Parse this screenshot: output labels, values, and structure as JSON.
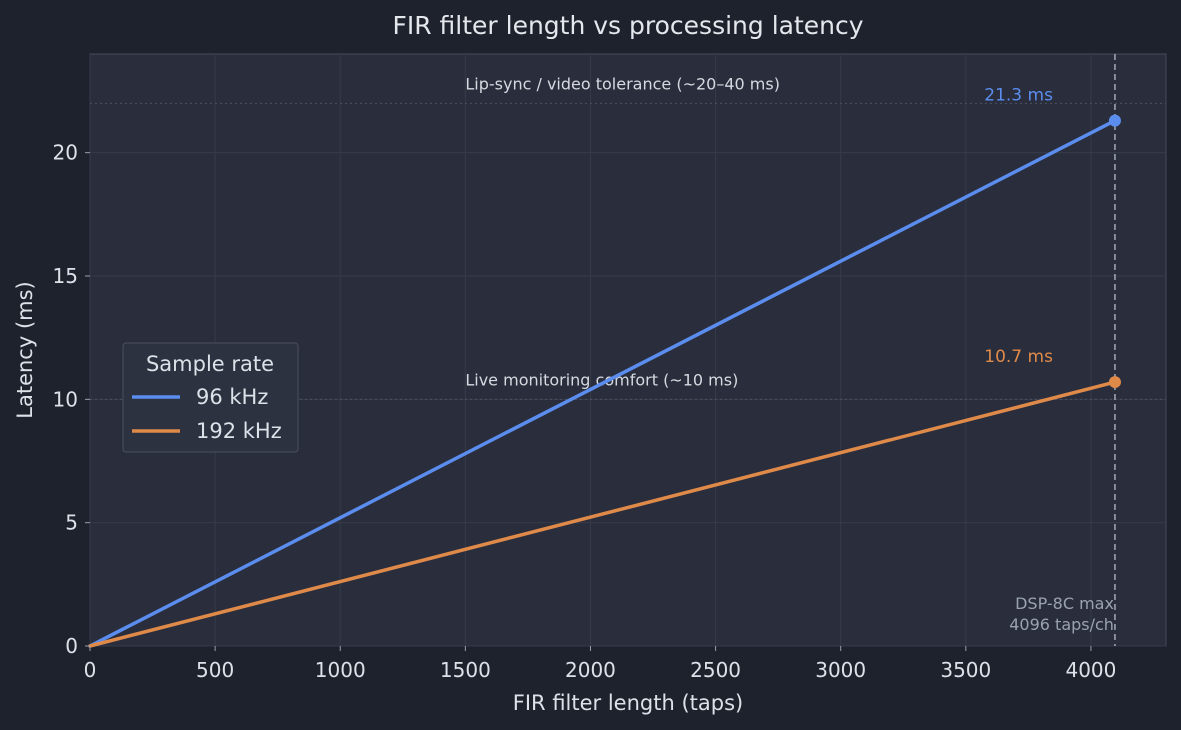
{
  "chart_data": {
    "type": "line",
    "title": "FIR filter length vs processing latency",
    "xlabel": "FIR filter length (taps)",
    "ylabel": "Latency (ms)",
    "xlim": [
      0,
      4300
    ],
    "ylim": [
      0,
      24
    ],
    "xticks": [
      0,
      500,
      1000,
      1500,
      2000,
      2500,
      3000,
      3500,
      4000
    ],
    "yticks": [
      0,
      5,
      10,
      15,
      20
    ],
    "grid": true,
    "legend": {
      "title": "Sample rate",
      "placement": "center-left"
    },
    "series": [
      {
        "name": "96 kHz",
        "color": "#5b8def",
        "x": [
          0,
          4096
        ],
        "y": [
          0,
          21.3
        ],
        "end_label": "21.3 ms"
      },
      {
        "name": "192 kHz",
        "color": "#e08a4a",
        "x": [
          0,
          4096
        ],
        "y": [
          0,
          10.7
        ],
        "end_label": "10.7 ms"
      }
    ],
    "reference_lines": [
      {
        "y": 22,
        "label": "Lip-sync / video tolerance (~20–40 ms)",
        "label_x": 1500
      },
      {
        "y": 10,
        "label": "Live monitoring comfort (~10 ms)",
        "label_x": 1500
      }
    ],
    "vertical_line": {
      "x": 4096,
      "label_lines": [
        "DSP-8C max",
        "4096 taps/ch"
      ]
    }
  }
}
